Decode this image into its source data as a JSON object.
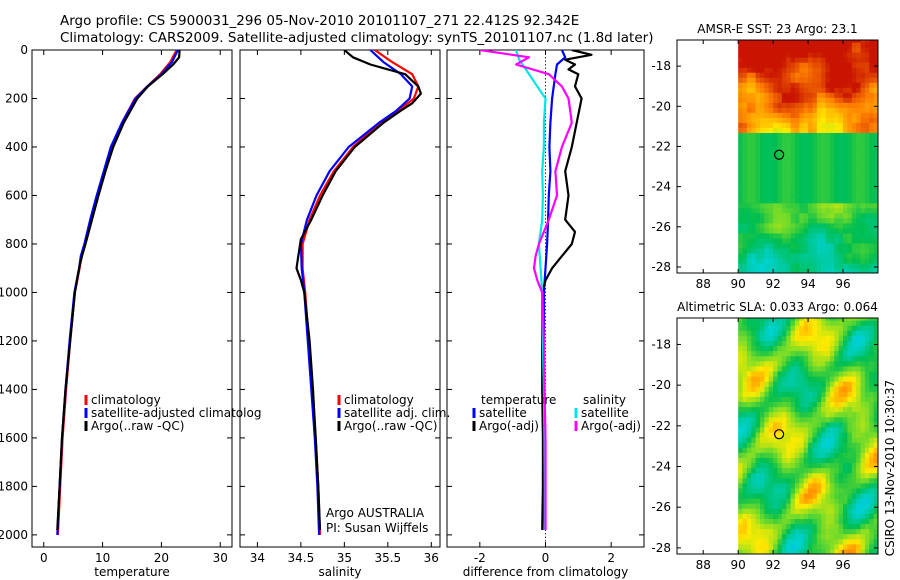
{
  "header": {
    "line1": "Argo profile: CS 5900031_296 05-Nov-2010 20101107_271 22.412S 92.342E",
    "line2": "Climatology: CARS2009. Satellite-adjusted climatology: synTS_20101107.nc (1.8d later)"
  },
  "side_label": "CSIRO 13-Nov-2010 10:30:37",
  "colors": {
    "clim": "#ff0000",
    "sat": "#0000ff",
    "argo": "#000000",
    "sal_sat": "#00e5e5",
    "sal_argo": "#ff00ff"
  },
  "chart_data": [
    {
      "type": "line",
      "xlabel": "temperature",
      "ylabel": "",
      "xlim": [
        -2,
        32
      ],
      "ylim": [
        2050,
        0
      ],
      "xticks": [
        "0",
        "10",
        "20",
        "30"
      ],
      "xtick_values": [
        0,
        10,
        20,
        30
      ],
      "yticks": [
        "0",
        "200",
        "400",
        "600",
        "800",
        "1000",
        "1200",
        "1400",
        "1600",
        "1800",
        "2000"
      ],
      "ytick_values": [
        0,
        200,
        400,
        600,
        800,
        1000,
        1200,
        1400,
        1600,
        1800,
        2000
      ],
      "legend": [
        "climatology",
        "satellite-adjusted climatolog",
        "Argo(..raw -QC)"
      ],
      "series": [
        {
          "name": "climatology",
          "color_key": "clim",
          "depth": [
            0,
            50,
            100,
            150,
            200,
            300,
            400,
            500,
            600,
            700,
            800,
            850,
            900,
            1000,
            1200,
            1400,
            1600,
            1800,
            2000
          ],
          "values": [
            22.6,
            21.5,
            19.8,
            17.6,
            15.5,
            13.3,
            11.5,
            10.3,
            9.2,
            8.1,
            7.0,
            6.4,
            6.1,
            5.3,
            4.5,
            3.8,
            3.2,
            2.8,
            2.4
          ]
        },
        {
          "name": "satellite-adjusted climatology",
          "color_key": "sat",
          "depth": [
            0,
            50,
            100,
            150,
            200,
            300,
            400,
            500,
            600,
            700,
            800,
            850,
            900,
            1000,
            1200,
            1400,
            1600,
            1800,
            2000
          ],
          "values": [
            22.8,
            21.8,
            20.0,
            17.6,
            15.6,
            13.3,
            11.4,
            10.2,
            9.0,
            7.9,
            6.9,
            6.3,
            6.0,
            5.2,
            4.4,
            3.7,
            3.1,
            2.7,
            2.3
          ]
        },
        {
          "name": "Argo(..raw -QC)",
          "color_key": "argo",
          "depth": [
            0,
            30,
            60,
            100,
            150,
            200,
            300,
            400,
            500,
            600,
            700,
            800,
            850,
            900,
            1000,
            1200,
            1400,
            1600,
            1800,
            1980
          ],
          "values": [
            23.1,
            23.0,
            22.0,
            20.2,
            17.7,
            15.9,
            13.6,
            11.8,
            10.5,
            9.3,
            8.2,
            7.1,
            6.5,
            6.0,
            5.3,
            4.5,
            3.7,
            3.1,
            2.7,
            2.3
          ]
        }
      ]
    },
    {
      "type": "line",
      "xlabel": "salinity",
      "ylabel": "",
      "xlim": [
        33.8,
        36.1
      ],
      "ylim": [
        2050,
        0
      ],
      "xticks": [
        "34",
        "34.5",
        "35",
        "35.5",
        "36"
      ],
      "xtick_values": [
        34,
        34.5,
        35,
        35.5,
        36
      ],
      "legend": [
        "climatology",
        "satellite adj. clim.",
        "Argo(..raw -QC)"
      ],
      "annotation": [
        "Argo AUSTRALIA",
        "PI: Susan Wijffels"
      ],
      "series": [
        {
          "name": "climatology",
          "color_key": "clim",
          "depth": [
            0,
            50,
            100,
            150,
            200,
            250,
            300,
            400,
            500,
            600,
            700,
            800,
            900,
            1000,
            1200,
            1400,
            1600,
            1800,
            2000
          ],
          "values": [
            35.35,
            35.55,
            35.78,
            35.85,
            35.8,
            35.62,
            35.42,
            35.1,
            34.88,
            34.72,
            34.6,
            34.52,
            34.52,
            34.55,
            34.59,
            34.63,
            34.67,
            34.7,
            34.72
          ]
        },
        {
          "name": "satellite adj. clim.",
          "color_key": "sat",
          "depth": [
            0,
            50,
            100,
            150,
            200,
            250,
            300,
            400,
            500,
            600,
            700,
            800,
            900,
            1000,
            1200,
            1400,
            1600,
            1800,
            2000
          ],
          "values": [
            35.3,
            35.45,
            35.65,
            35.78,
            35.75,
            35.6,
            35.4,
            35.05,
            34.83,
            34.68,
            34.57,
            34.5,
            34.51,
            34.54,
            34.58,
            34.62,
            34.66,
            34.69,
            34.71
          ]
        },
        {
          "name": "Argo(..raw -QC)",
          "color_key": "argo",
          "depth": [
            0,
            30,
            60,
            100,
            150,
            180,
            220,
            250,
            300,
            400,
            500,
            600,
            700,
            780,
            850,
            900,
            950,
            1000,
            1200,
            1400,
            1600,
            1800,
            1980
          ],
          "values": [
            35.0,
            35.1,
            35.3,
            35.7,
            35.85,
            35.88,
            35.78,
            35.65,
            35.45,
            35.12,
            34.9,
            34.75,
            34.62,
            34.5,
            34.47,
            34.45,
            34.5,
            34.54,
            34.6,
            34.64,
            34.67,
            34.7,
            34.72
          ]
        }
      ]
    },
    {
      "type": "line",
      "xlabel": "difference from climatology",
      "ylabel": "",
      "xlim": [
        -3,
        3
      ],
      "ylim": [
        2050,
        0
      ],
      "xticks": [
        "-2",
        "0",
        "2"
      ],
      "xtick_values": [
        -2,
        0,
        2
      ],
      "legend": [
        "temperature",
        "satellite",
        "Argo(-adj)",
        "salinity",
        "satellite",
        "Argo(-adj)"
      ],
      "series": [
        {
          "name": "temperature satellite",
          "color_key": "sat",
          "depth": [
            0,
            30,
            60,
            100,
            200,
            300,
            400,
            500,
            600,
            700,
            800,
            900,
            1000,
            1200,
            1400,
            1600,
            1800,
            1980
          ],
          "values": [
            0.5,
            0.6,
            0.35,
            0.3,
            0.2,
            0.15,
            0.12,
            0.15,
            0.1,
            0.08,
            0.05,
            0.0,
            -0.05,
            -0.05,
            -0.05,
            -0.05,
            -0.05,
            -0.03
          ]
        },
        {
          "name": "temperature Argo(-adj)",
          "color_key": "argo",
          "depth": [
            0,
            20,
            40,
            60,
            80,
            100,
            150,
            200,
            300,
            400,
            500,
            600,
            700,
            750,
            800,
            850,
            900,
            950,
            1000,
            1200,
            1400,
            1600,
            1800,
            1980
          ],
          "values": [
            0.8,
            1.4,
            0.6,
            0.9,
            0.7,
            1.0,
            0.9,
            1.1,
            0.95,
            0.8,
            0.6,
            0.7,
            0.6,
            0.9,
            0.8,
            0.5,
            0.2,
            0.0,
            -0.1,
            -0.1,
            -0.1,
            -0.08,
            -0.08,
            -0.1
          ]
        },
        {
          "name": "salinity satellite",
          "color_key": "sal_sat",
          "depth": [
            0,
            40,
            80,
            120,
            160,
            200,
            300,
            400,
            500,
            600,
            700,
            800,
            900,
            1000,
            1200,
            1400,
            1600,
            1800,
            1980
          ],
          "values": [
            -0.9,
            -0.8,
            -0.6,
            -0.4,
            -0.2,
            0.0,
            -0.05,
            -0.05,
            -0.1,
            -0.08,
            -0.1,
            -0.2,
            -0.15,
            -0.1,
            -0.08,
            -0.05,
            -0.03,
            -0.02,
            -0.02
          ]
        },
        {
          "name": "salinity Argo(-adj)",
          "color_key": "sal_argo",
          "depth": [
            0,
            30,
            60,
            100,
            150,
            200,
            300,
            400,
            500,
            600,
            700,
            800,
            850,
            900,
            950,
            1000,
            1200,
            1400,
            1600,
            1800,
            1980
          ],
          "values": [
            -2.0,
            -0.5,
            -0.9,
            0.1,
            0.5,
            0.7,
            0.8,
            0.5,
            0.3,
            0.35,
            0.1,
            -0.2,
            -0.3,
            -0.35,
            -0.25,
            -0.1,
            -0.05,
            -0.03,
            0.0,
            0.0,
            0.0
          ]
        }
      ]
    },
    {
      "type": "heatmap",
      "title": "AMSR-E SST: 23 Argo: 23.1",
      "xlim": [
        86.5,
        98
      ],
      "ylim": [
        -28.3,
        -16.7
      ],
      "xticks": [
        "88",
        "90",
        "92",
        "94",
        "96"
      ],
      "xtick_values": [
        88,
        90,
        92,
        94,
        96
      ],
      "yticks": [
        "-18",
        "-20",
        "-22",
        "-24",
        "-26",
        "-28"
      ],
      "ytick_values": [
        -18,
        -20,
        -22,
        -24,
        -26,
        -28
      ],
      "data_extent_lon": [
        90,
        98
      ],
      "marker": {
        "lon": 92.342,
        "lat": -22.412
      }
    },
    {
      "type": "heatmap",
      "title": "Altimetric SLA: 0.033 Argo: 0.064",
      "xlim": [
        86.5,
        98
      ],
      "ylim": [
        -28.3,
        -16.7
      ],
      "xticks": [
        "88",
        "90",
        "92",
        "94",
        "96"
      ],
      "xtick_values": [
        88,
        90,
        92,
        94,
        96
      ],
      "yticks": [
        "-18",
        "-20",
        "-22",
        "-24",
        "-26",
        "-28"
      ],
      "ytick_values": [
        -18,
        -20,
        -22,
        -24,
        -26,
        -28
      ],
      "data_extent_lon": [
        90,
        98
      ],
      "marker": {
        "lon": 92.342,
        "lat": -22.412
      }
    }
  ]
}
